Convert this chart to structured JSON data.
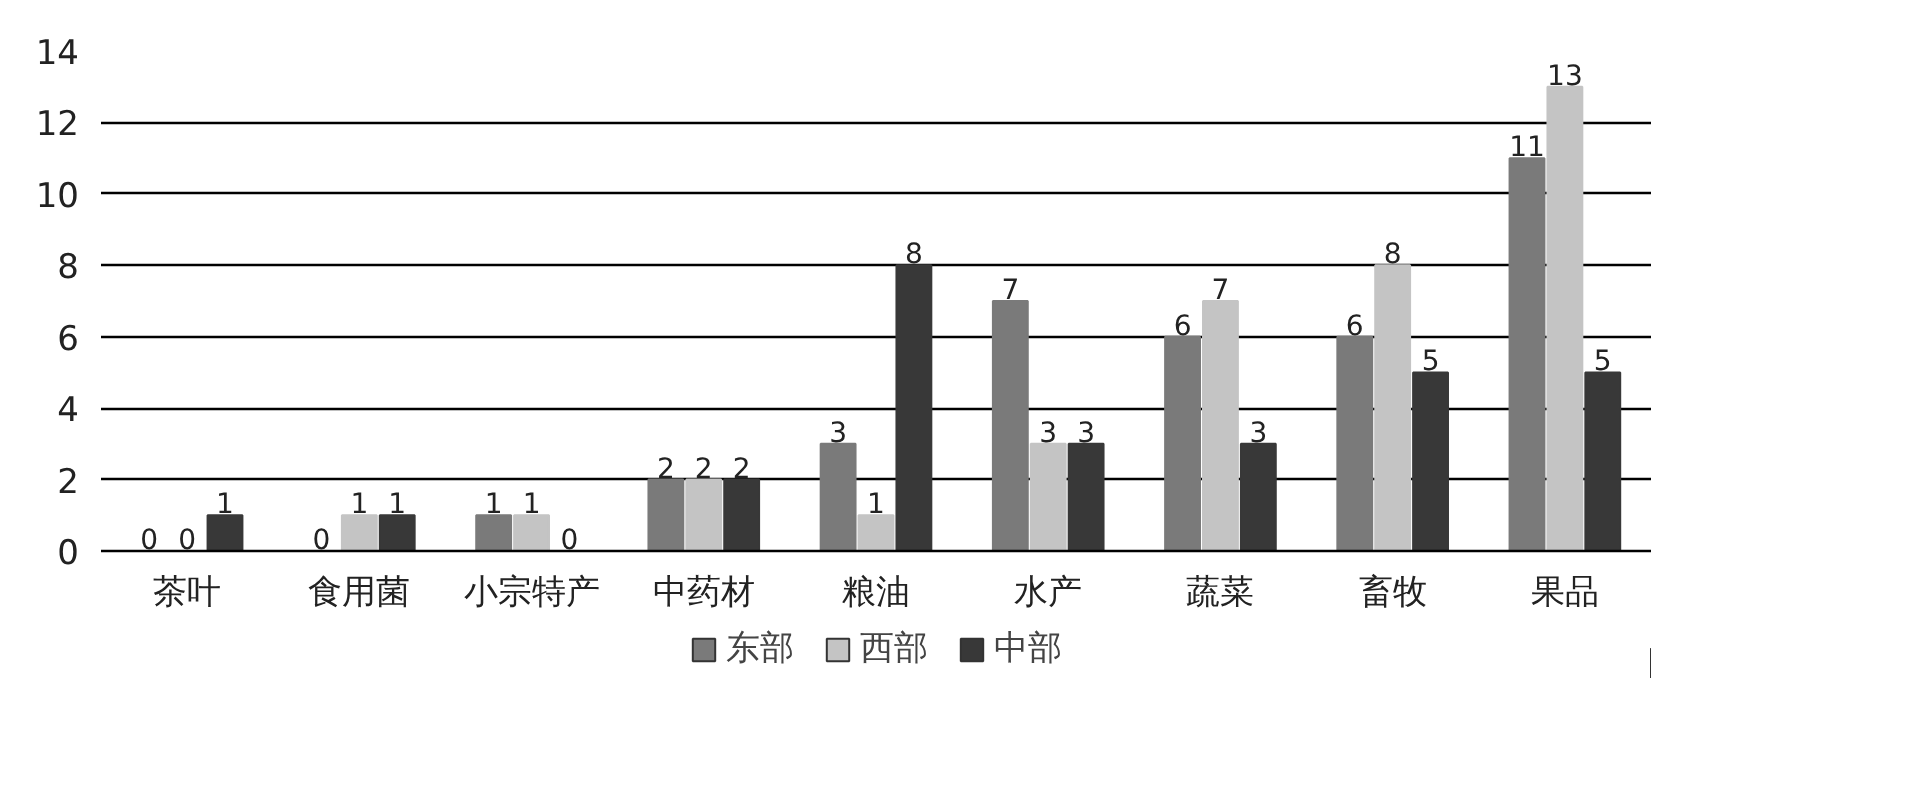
{
  "chart_data": {
    "type": "bar",
    "categories": [
      "茶叶",
      "食用菌",
      "小宗特产",
      "中药材",
      "粮油",
      "水产",
      "蔬菜",
      "畜牧",
      "果品"
    ],
    "series": [
      {
        "name": "东部",
        "color": "#7a7a7a",
        "values": [
          0,
          0,
          1,
          2,
          3,
          7,
          6,
          6,
          11
        ]
      },
      {
        "name": "西部",
        "color": "#c4c4c4",
        "values": [
          0,
          1,
          1,
          2,
          1,
          3,
          7,
          8,
          13
        ]
      },
      {
        "name": "中部",
        "color": "#383838",
        "values": [
          1,
          1,
          0,
          2,
          8,
          3,
          3,
          5,
          5
        ]
      }
    ],
    "ylim": [
      0,
      14
    ],
    "yticks": [
      0,
      2,
      4,
      6,
      8,
      10,
      12,
      14
    ],
    "grid": "y",
    "legend": "bottom",
    "data_labels": true
  }
}
